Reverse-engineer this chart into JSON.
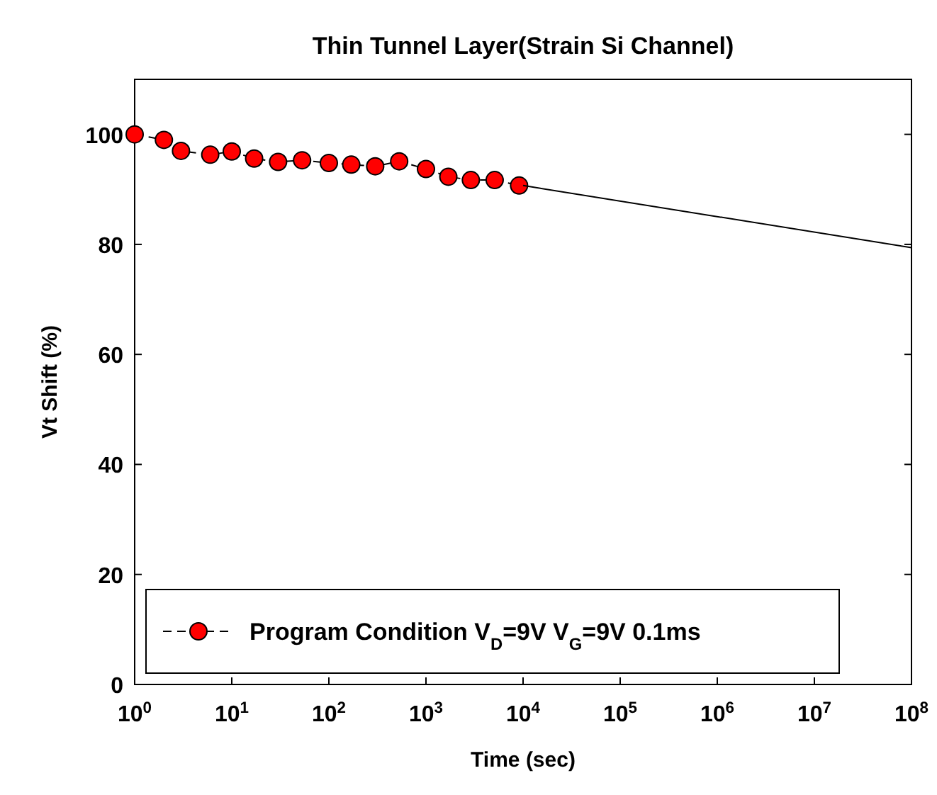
{
  "chart_data": {
    "type": "line",
    "title": "Thin Tunnel Layer(Strain Si Channel)",
    "xlabel": "Time (sec)",
    "ylabel": "Vt Shift (%)",
    "log": "x",
    "xlim": [
      1,
      100000000
    ],
    "ylim": [
      0,
      110
    ],
    "xticks": [
      {
        "value": 1,
        "label": "10$^{0}$"
      },
      {
        "value": 10,
        "label": "10$^{1}$"
      },
      {
        "value": 100,
        "label": "10$^{2}$"
      },
      {
        "value": 1000,
        "label": "10$^{3}$"
      },
      {
        "value": 10000,
        "label": "10$^{4}$"
      },
      {
        "value": 100000,
        "label": "10$^{5}$"
      },
      {
        "value": 1000000,
        "label": "10$^{6}$"
      },
      {
        "value": 10000000,
        "label": "10$^{7}$"
      },
      {
        "value": 100000000,
        "label": "10$^{8}$"
      }
    ],
    "yticks": [
      0,
      20,
      40,
      60,
      80,
      100
    ],
    "grid": false,
    "legend": "bottom left",
    "series": [
      {
        "name": "Program Condition V$_{D}$=9V V$_{G}$=9V 0.1ms",
        "color": "#ff0000",
        "marker": "circle",
        "line_style": "dashed",
        "x": [
          1,
          2,
          3,
          6,
          10,
          17,
          30,
          53,
          100,
          170,
          300,
          530,
          1000,
          1700,
          2900,
          5100,
          9100
        ],
        "values": [
          100,
          99,
          97,
          96.3,
          96.9,
          95.6,
          95,
          95.3,
          94.8,
          94.5,
          94.2,
          95.1,
          93.7,
          92.3,
          91.7,
          91.7,
          90.7
        ]
      },
      {
        "type": "line",
        "color": "#000000",
        "marker": "none",
        "line_style": "solid",
        "x": [
          10000,
          100000000
        ],
        "values": [
          90.7,
          79.4
        ]
      }
    ]
  }
}
